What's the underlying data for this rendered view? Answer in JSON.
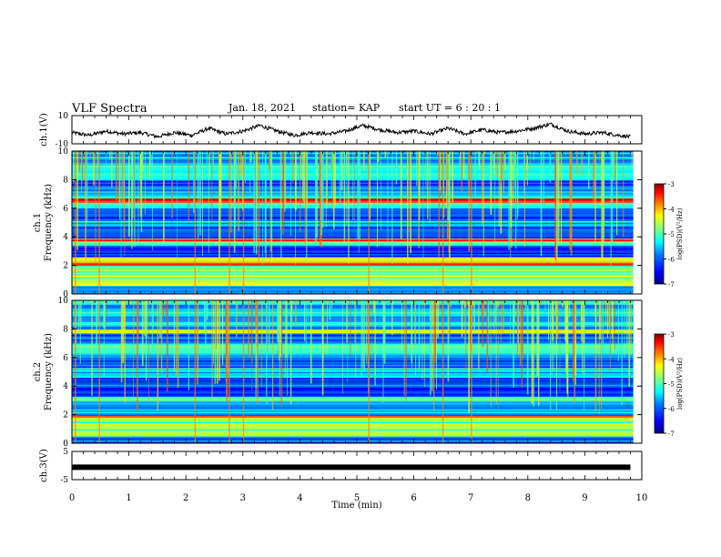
{
  "header": {
    "title": "VLF Spectra",
    "date": "Jan. 18, 2021",
    "station": "station= KAP",
    "start": "start  UT =   6 : 20 : 1"
  },
  "colors": {
    "waveform": "#000000",
    "colormap": [
      "#000080",
      "#0000ff",
      "#0080ff",
      "#00ffff",
      "#80ff80",
      "#ffff00",
      "#ff8000",
      "#ff0000",
      "#800000"
    ]
  },
  "chart_data": [
    {
      "panel": "ch1-waveform",
      "type": "line",
      "ylabel": "ch.1(V)",
      "ylim": [
        -10,
        10
      ],
      "yticks": [
        "10",
        "-10"
      ],
      "xlim": [
        0,
        10
      ],
      "x_units": "min",
      "series": [
        {
          "points": [
            [
              0.0,
              -2
            ],
            [
              0.3,
              -4
            ],
            [
              0.6,
              -1
            ],
            [
              0.9,
              -3
            ],
            [
              1.2,
              -2
            ],
            [
              1.5,
              -5
            ],
            [
              1.8,
              -2
            ],
            [
              2.1,
              -4
            ],
            [
              2.4,
              1
            ],
            [
              2.7,
              -3
            ],
            [
              3.0,
              -1
            ],
            [
              3.3,
              3
            ],
            [
              3.6,
              -1
            ],
            [
              3.9,
              -4
            ],
            [
              4.2,
              -2
            ],
            [
              4.5,
              -3
            ],
            [
              4.8,
              -1
            ],
            [
              5.1,
              3
            ],
            [
              5.4,
              0
            ],
            [
              5.7,
              -2
            ],
            [
              6.0,
              -1
            ],
            [
              6.3,
              -3
            ],
            [
              6.6,
              1
            ],
            [
              6.9,
              -3
            ],
            [
              7.2,
              0
            ],
            [
              7.5,
              -2
            ],
            [
              7.8,
              -1
            ],
            [
              8.1,
              1
            ],
            [
              8.4,
              4
            ],
            [
              8.7,
              -1
            ],
            [
              9.0,
              -3
            ],
            [
              9.3,
              -2
            ],
            [
              9.6,
              -4
            ],
            [
              9.8,
              -5
            ]
          ]
        }
      ]
    },
    {
      "panel": "ch1-spectrogram",
      "type": "heatmap",
      "ylabel_top": "ch.1",
      "ylabel": "Frequency  (kHz)",
      "ylim": [
        0,
        10
      ],
      "yticks": [
        "0",
        "2",
        "4",
        "6",
        "8",
        "10"
      ],
      "xlim": [
        0,
        10
      ],
      "colorbar": {
        "label": "log(PSD)(V²/Hz)",
        "range": [
          -7,
          -3
        ],
        "ticks": [
          "-3",
          "-4",
          "-5",
          "-6",
          "-7"
        ]
      },
      "bands_khz": [
        {
          "from": 0,
          "to": 0.6,
          "level": -6.0
        },
        {
          "from": 0.6,
          "to": 2.0,
          "level": -4.7
        },
        {
          "from": 2.0,
          "to": 2.2,
          "level": -3.4
        },
        {
          "from": 2.2,
          "to": 2.6,
          "level": -4.5
        },
        {
          "from": 2.6,
          "to": 3.4,
          "level": -6.2
        },
        {
          "from": 3.4,
          "to": 3.7,
          "level": -5.3
        },
        {
          "from": 3.7,
          "to": 3.9,
          "level": -3.6
        },
        {
          "from": 3.9,
          "to": 4.8,
          "level": -6.0
        },
        {
          "from": 4.8,
          "to": 5.3,
          "level": -5.6
        },
        {
          "from": 5.3,
          "to": 6.0,
          "level": -6.1
        },
        {
          "from": 6.0,
          "to": 6.4,
          "level": -5.2
        },
        {
          "from": 6.4,
          "to": 6.7,
          "level": -3.5
        },
        {
          "from": 6.7,
          "to": 7.2,
          "level": -5.3
        },
        {
          "from": 7.2,
          "to": 8.0,
          "level": -6.0
        },
        {
          "from": 8.0,
          "to": 9.2,
          "level": -5.3
        },
        {
          "from": 9.2,
          "to": 10.0,
          "level": -5.7
        }
      ]
    },
    {
      "panel": "ch2-spectrogram",
      "type": "heatmap",
      "ylabel_top": "ch.2",
      "ylabel": "Frequency  (kHz)",
      "ylim": [
        0,
        10
      ],
      "yticks": [
        "0",
        "2",
        "4",
        "6",
        "8",
        "10"
      ],
      "xlim": [
        0,
        10
      ],
      "colorbar": {
        "label": "log(PSD)(V²/Hz)",
        "range": [
          -7,
          -3
        ],
        "ticks": [
          "-3",
          "-4",
          "-5",
          "-6",
          "-7"
        ]
      },
      "bands_khz": [
        {
          "from": 0,
          "to": 0.5,
          "level": -6.0
        },
        {
          "from": 0.5,
          "to": 1.8,
          "level": -4.8
        },
        {
          "from": 1.8,
          "to": 2.0,
          "level": -3.8
        },
        {
          "from": 2.0,
          "to": 3.0,
          "level": -5.6
        },
        {
          "from": 3.0,
          "to": 3.3,
          "level": -4.9
        },
        {
          "from": 3.3,
          "to": 4.6,
          "level": -6.1
        },
        {
          "from": 4.6,
          "to": 5.3,
          "level": -5.4
        },
        {
          "from": 5.3,
          "to": 6.2,
          "level": -6.0
        },
        {
          "from": 6.2,
          "to": 7.0,
          "level": -5.3
        },
        {
          "from": 7.0,
          "to": 7.7,
          "level": -6.0
        },
        {
          "from": 7.7,
          "to": 8.0,
          "level": -4.6
        },
        {
          "from": 8.0,
          "to": 10.0,
          "level": -5.5
        }
      ]
    },
    {
      "panel": "ch3-waveform",
      "type": "line",
      "ylabel": "ch.3(V)",
      "ylim": [
        -5,
        5
      ],
      "yticks": [
        "5",
        "-5"
      ],
      "xlim": [
        0,
        10
      ],
      "xlabel": "Time  (min)",
      "xticks": [
        "0",
        "1",
        "2",
        "3",
        "4",
        "5",
        "6",
        "7",
        "8",
        "9",
        "10"
      ],
      "series": [
        {
          "points": [
            [
              0,
              -0.6
            ],
            [
              9.8,
              -0.6
            ]
          ]
        }
      ]
    }
  ]
}
